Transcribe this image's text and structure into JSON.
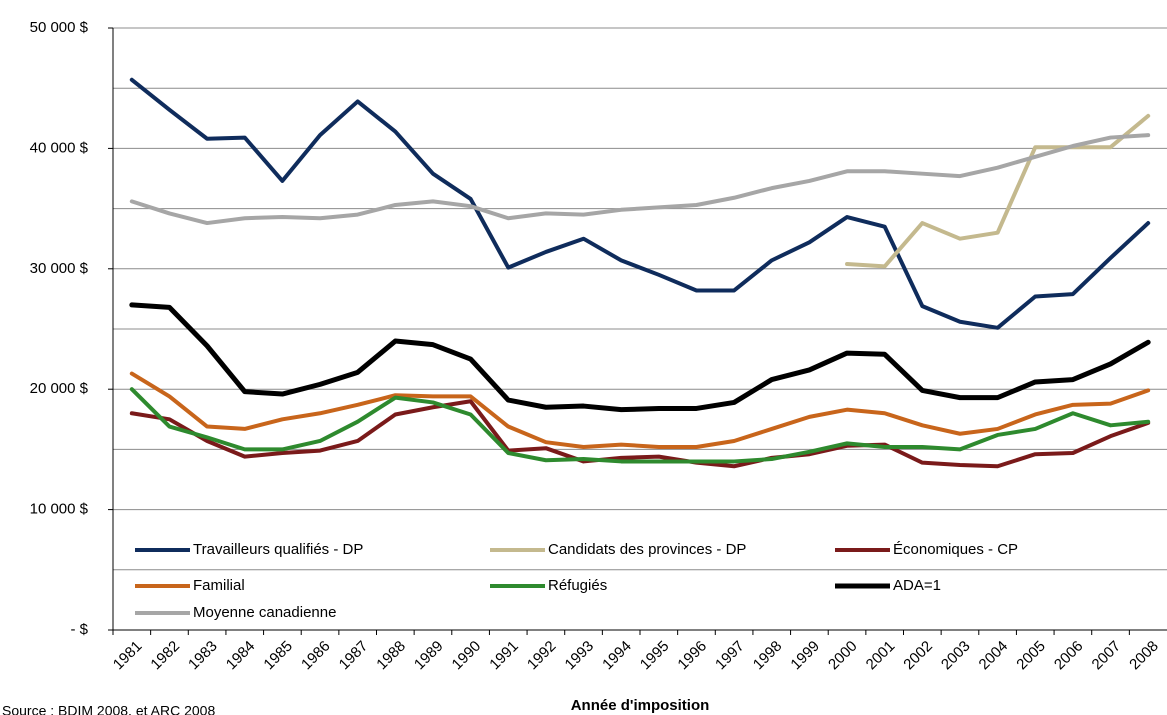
{
  "chart_data": {
    "type": "line",
    "x_label": "Année d'imposition",
    "source": "Source : BDIM 2008, et ARC 2008",
    "categories": [
      "1981",
      "1982",
      "1983",
      "1984",
      "1985",
      "1986",
      "1987",
      "1988",
      "1989",
      "1990",
      "1991",
      "1992",
      "1993",
      "1994",
      "1995",
      "1996",
      "1997",
      "1998",
      "1999",
      "2000",
      "2001",
      "2002",
      "2003",
      "2004",
      "2005",
      "2006",
      "2007",
      "2008"
    ],
    "ylim": [
      0,
      50000
    ],
    "yticks": [
      {
        "value": 0,
        "label": "- $"
      },
      {
        "value": 10000,
        "label": "10 000 $"
      },
      {
        "value": 20000,
        "label": "20 000 $"
      },
      {
        "value": 30000,
        "label": "30 000 $"
      },
      {
        "value": 40000,
        "label": "40 000 $"
      },
      {
        "value": 50000,
        "label": "50 000 $"
      }
    ],
    "minor_grid": [
      5000,
      15000,
      25000,
      35000,
      45000
    ],
    "grid": true,
    "legend": "bottom",
    "series": [
      {
        "name": "Travailleurs qualifiés - DP",
        "color": "#0f2c5c",
        "width": 4,
        "values": [
          45700,
          43200,
          40800,
          40900,
          37300,
          41100,
          43900,
          41400,
          37900,
          35800,
          30100,
          31400,
          32500,
          30700,
          29500,
          28200,
          28200,
          30700,
          32200,
          34300,
          33500,
          26900,
          25600,
          25100,
          27700,
          27900,
          30900,
          33800
        ]
      },
      {
        "name": "Candidats des provinces - DP",
        "color": "#c4b98e",
        "width": 4,
        "values": [
          null,
          null,
          null,
          null,
          null,
          null,
          null,
          null,
          null,
          null,
          null,
          null,
          null,
          null,
          null,
          null,
          null,
          null,
          null,
          30400,
          30200,
          33800,
          32500,
          33000,
          40100,
          40100,
          40100,
          42700
        ]
      },
      {
        "name": "Économiques  - CP",
        "color": "#7a1a1a",
        "width": 4,
        "values": [
          18000,
          17500,
          15700,
          14400,
          14700,
          14900,
          15700,
          17900,
          18500,
          19000,
          14900,
          15100,
          14000,
          14300,
          14400,
          13900,
          13600,
          14300,
          14600,
          15300,
          15400,
          13900,
          13700,
          13600,
          14600,
          14700,
          16100,
          17200
        ]
      },
      {
        "name": "Familial",
        "color": "#c8651b",
        "width": 4,
        "values": [
          21300,
          19400,
          16900,
          16700,
          17500,
          18000,
          18700,
          19500,
          19400,
          19400,
          16900,
          15600,
          15200,
          15400,
          15200,
          15200,
          15700,
          16700,
          17700,
          18300,
          18000,
          17000,
          16300,
          16700,
          17900,
          18700,
          18800,
          19900
        ]
      },
      {
        "name": "Réfugiés",
        "color": "#2e8a2e",
        "width": 4,
        "values": [
          20000,
          16900,
          16000,
          15000,
          15000,
          15700,
          17300,
          19300,
          18900,
          17900,
          14700,
          14100,
          14200,
          14000,
          14000,
          14000,
          14000,
          14200,
          14800,
          15500,
          15200,
          15200,
          15000,
          16200,
          16700,
          18000,
          17000,
          17300
        ]
      },
      {
        "name": "ADA=1",
        "color": "#000000",
        "width": 5,
        "values": [
          27000,
          26800,
          23600,
          19800,
          19600,
          20400,
          21400,
          24000,
          23700,
          22500,
          19100,
          18500,
          18600,
          18300,
          18400,
          18400,
          18900,
          20800,
          21600,
          23000,
          22900,
          19900,
          19300,
          19300,
          20600,
          20800,
          22100,
          23900
        ]
      },
      {
        "name": "Moyenne canadienne",
        "color": "#a6a6a6",
        "width": 4,
        "values": [
          35600,
          34600,
          33800,
          34200,
          34300,
          34200,
          34500,
          35300,
          35600,
          35200,
          34200,
          34600,
          34500,
          34900,
          35100,
          35300,
          35900,
          36700,
          37300,
          38100,
          38100,
          37900,
          37700,
          38400,
          39300,
          40200,
          40900,
          41100
        ]
      }
    ]
  }
}
